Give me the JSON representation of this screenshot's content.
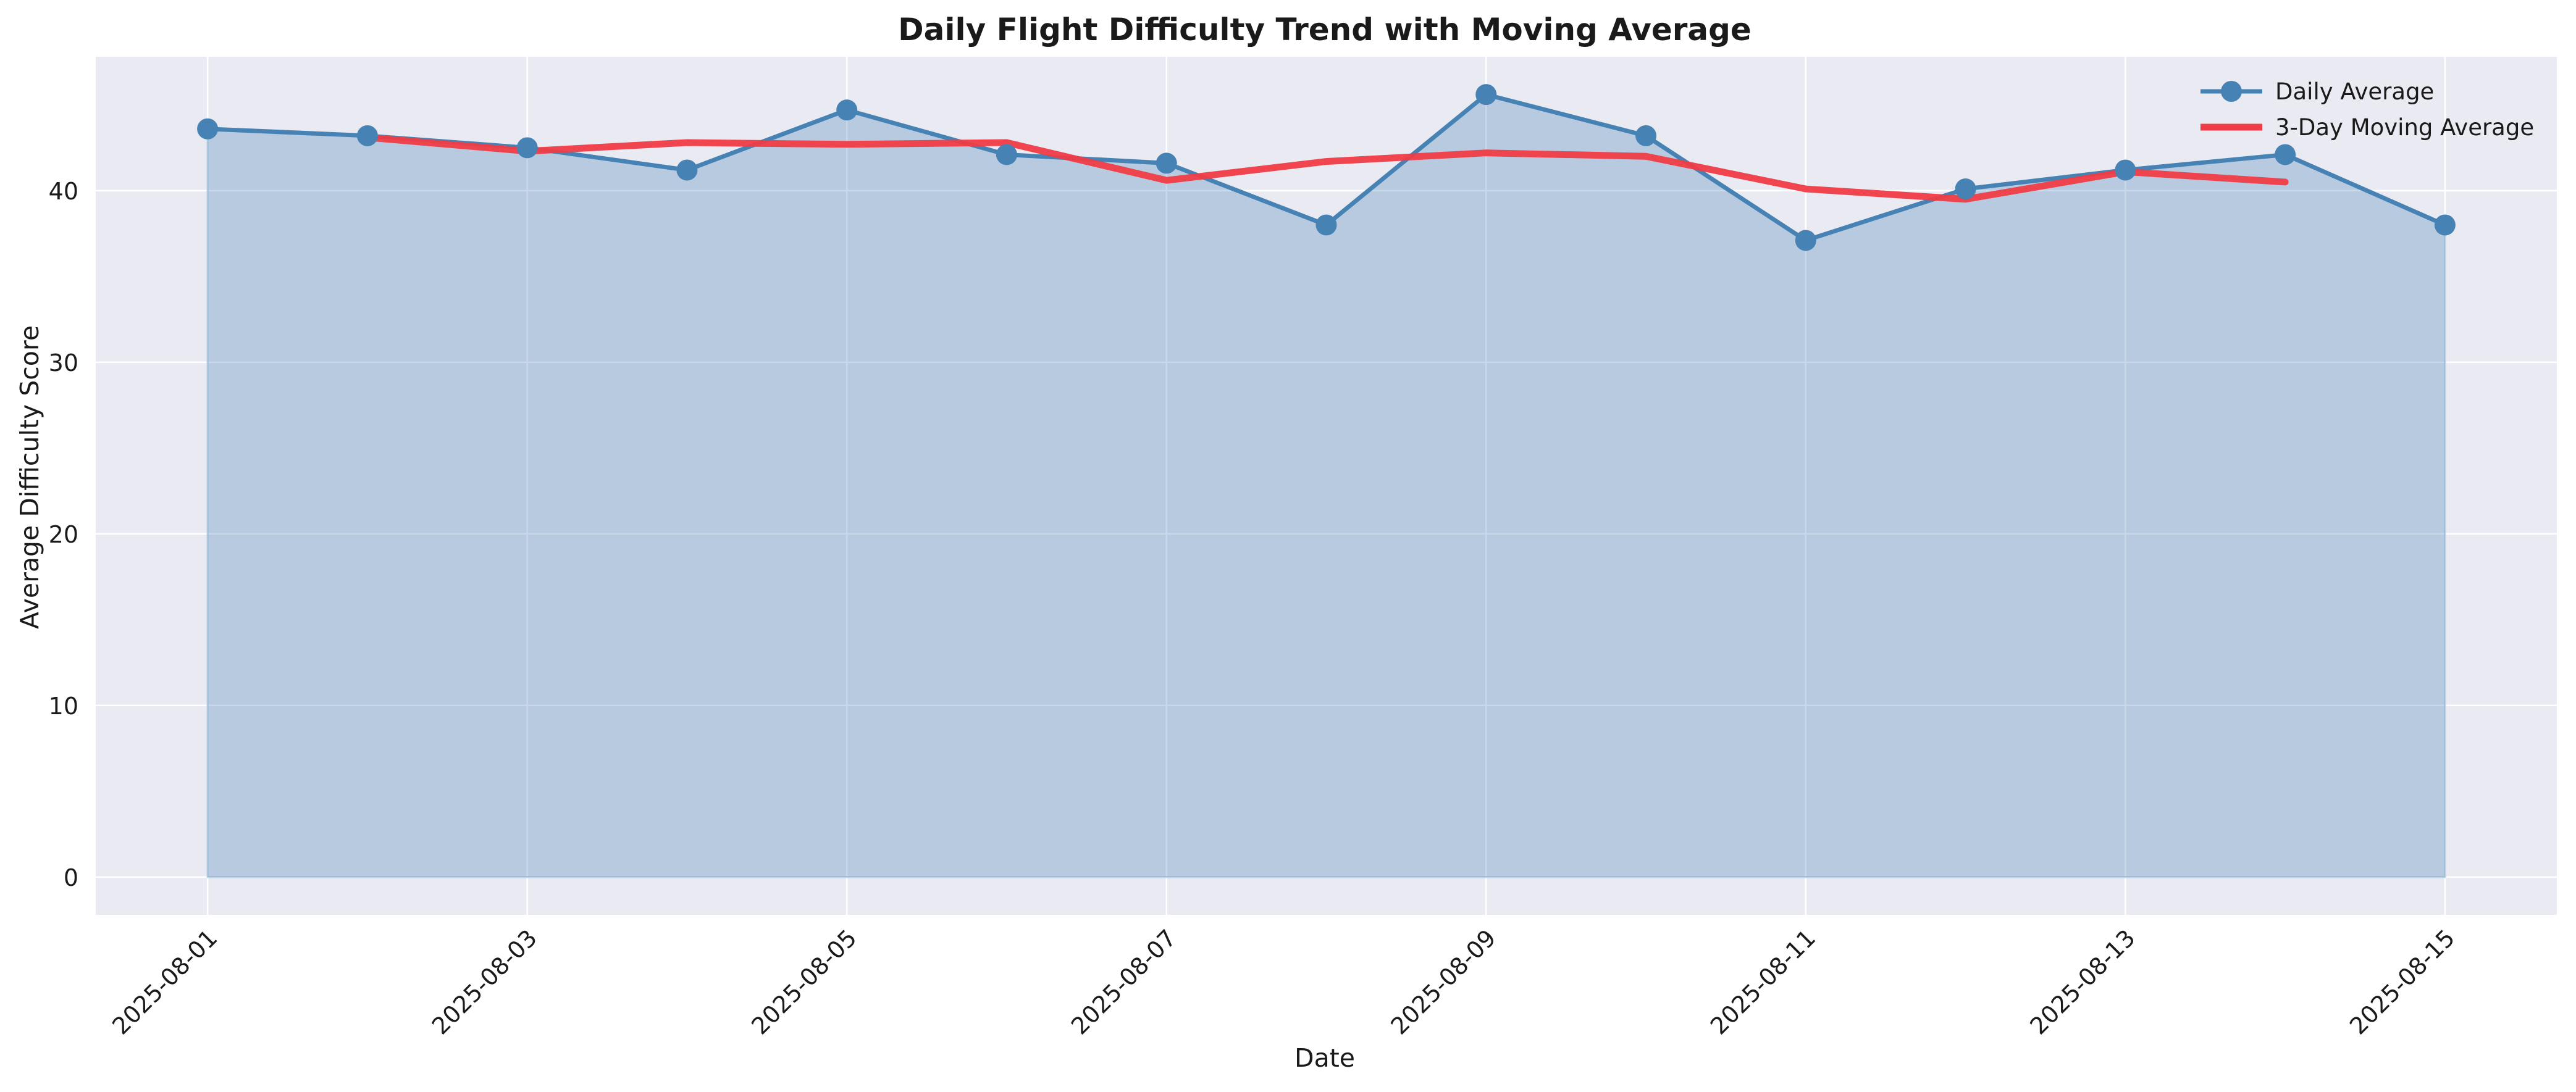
{
  "chart_data": {
    "type": "line",
    "title": "Daily Flight Difficulty Trend with Moving Average",
    "xlabel": "Date",
    "ylabel": "Average Difficulty Score",
    "x": [
      "2025-08-01",
      "2025-08-02",
      "2025-08-03",
      "2025-08-04",
      "2025-08-05",
      "2025-08-06",
      "2025-08-07",
      "2025-08-08",
      "2025-08-09",
      "2025-08-10",
      "2025-08-11",
      "2025-08-12",
      "2025-08-13",
      "2025-08-14",
      "2025-08-15"
    ],
    "x_tick_labels": [
      "2025-08-01",
      "2025-08-03",
      "2025-08-05",
      "2025-08-07",
      "2025-08-09",
      "2025-08-11",
      "2025-08-13",
      "2025-08-15"
    ],
    "y_ticks": [
      0,
      10,
      20,
      30,
      40
    ],
    "ylim": [
      -2.2,
      47.8
    ],
    "xlim": [
      "2025-07-31T07:12",
      "2025-08-15T16:48"
    ],
    "grid": true,
    "legend_position": "top-right",
    "series": [
      {
        "name": "Daily Average",
        "style": "line-markers-filled-area",
        "color": "#4682b4",
        "values": [
          43.6,
          43.2,
          42.5,
          41.2,
          44.7,
          42.1,
          41.6,
          38.0,
          45.6,
          43.2,
          37.1,
          40.1,
          41.2,
          42.1,
          38.0
        ]
      },
      {
        "name": "3-Day Moving Average",
        "style": "line",
        "color": "#f03c46",
        "values": [
          null,
          43.1,
          42.3,
          42.8,
          42.7,
          42.8,
          40.6,
          41.7,
          42.2,
          42.0,
          40.1,
          39.5,
          41.1,
          40.5,
          null
        ]
      }
    ]
  }
}
